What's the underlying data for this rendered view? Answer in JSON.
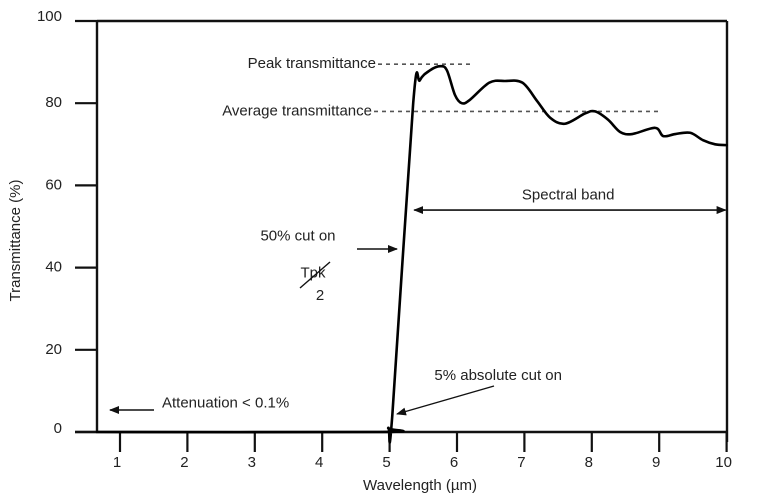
{
  "chart_data": {
    "type": "line",
    "title": "",
    "xlabel": "Wavelength (µm)",
    "ylabel": "Transmittance (%)",
    "xlim": [
      0.66,
      10
    ],
    "ylim": [
      0,
      100
    ],
    "xticks": [
      1,
      2,
      3,
      4,
      5,
      6,
      7,
      8,
      9,
      10
    ],
    "yticks": [
      0,
      20,
      40,
      60,
      80,
      100
    ],
    "xtick_labels": [
      "1",
      "2",
      "3",
      "4",
      "5",
      "6",
      "7",
      "8",
      "9",
      "10"
    ],
    "ytick_labels": [
      "0",
      "20",
      "40",
      "60",
      "80",
      "100"
    ],
    "grid": false,
    "legend": null,
    "series": [
      {
        "name": "Transmittance",
        "color": "#000000",
        "x": [
          0.66,
          4.86,
          4.98,
          5.04,
          5.35,
          5.45,
          5.6,
          5.75,
          5.85,
          5.97,
          6.07,
          6.19,
          6.48,
          6.71,
          6.97,
          7.19,
          7.38,
          7.6,
          7.9,
          8.05,
          8.24,
          8.42,
          8.6,
          8.94,
          9.06,
          9.24,
          9.46,
          9.65,
          9.83,
          10.0
        ],
        "y": [
          0,
          0,
          1,
          4,
          80,
          85.6,
          88,
          89,
          88,
          82,
          80,
          80.8,
          85,
          85.4,
          85,
          80.5,
          76.5,
          75,
          77.5,
          78,
          76,
          73,
          72.5,
          74,
          72,
          72.5,
          72.8,
          71,
          70,
          69.8
        ]
      }
    ],
    "reference_lines": [
      {
        "name": "Peak transmittance",
        "y": 89.5,
        "x_from": 0.66,
        "x_to": 6.2,
        "style": "dashed"
      },
      {
        "name": "Average transmittance",
        "y": 78,
        "x_from": 0.66,
        "x_to": 9.0,
        "style": "dashed"
      }
    ],
    "annotations": [
      {
        "id": "peak",
        "text": "Peak transmittance",
        "x": 4.3,
        "y": 89.5
      },
      {
        "id": "average",
        "text": "Average transmittance",
        "x": 4.3,
        "y": 78
      },
      {
        "id": "spectral_band",
        "text": "Spectral band",
        "x": 7.65,
        "y": 57.5,
        "arrow_from": 5.35,
        "arrow_to": 10.0,
        "arrow_y": 54
      },
      {
        "id": "cut_on_50",
        "text": "50% cut on",
        "x": 3.6,
        "y": 47.5,
        "arrow_to_x": 5.2,
        "arrow_y": 44.5
      },
      {
        "id": "tpk_half_num",
        "text": "Tpk",
        "x": 3.5,
        "y": 38.5
      },
      {
        "id": "tpk_half_den",
        "text": "2",
        "x": 3.88,
        "y": 34
      },
      {
        "id": "cut_on_5",
        "text": "5% absolute cut on",
        "x": 6.7,
        "y": 12.5,
        "arrow_from_x": 6.4,
        "arrow_from_y": 11,
        "arrow_to_x": 5.1,
        "arrow_to_y": 4
      },
      {
        "id": "attenuation",
        "text": "Attenuation < 0.1%",
        "x": 2.32,
        "y": 6.5,
        "arrow_from_x": 2.22,
        "arrow_to_x": 0.88,
        "arrow_y": 5
      }
    ]
  }
}
